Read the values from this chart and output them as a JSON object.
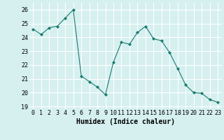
{
  "x": [
    0,
    1,
    2,
    3,
    4,
    5,
    6,
    7,
    8,
    9,
    10,
    11,
    12,
    13,
    14,
    15,
    16,
    17,
    18,
    19,
    20,
    21,
    22,
    23
  ],
  "y": [
    24.6,
    24.2,
    24.7,
    24.8,
    25.4,
    26.0,
    21.2,
    20.8,
    20.4,
    19.85,
    22.2,
    23.65,
    23.5,
    24.35,
    24.8,
    23.9,
    23.75,
    22.9,
    21.75,
    20.55,
    20.0,
    19.95,
    19.5,
    19.3
  ],
  "line_color": "#1a7a6e",
  "marker": "D",
  "marker_size": 2,
  "bg_color": "#d6f0f0",
  "grid_color": "#ffffff",
  "xlabel": "Humidex (Indice chaleur)",
  "xlabel_fontsize": 7,
  "tick_fontsize": 6,
  "xlim": [
    -0.5,
    23.5
  ],
  "ylim": [
    18.8,
    26.5
  ],
  "yticks": [
    19,
    20,
    21,
    22,
    23,
    24,
    25,
    26
  ],
  "xticks": [
    0,
    1,
    2,
    3,
    4,
    5,
    6,
    7,
    8,
    9,
    10,
    11,
    12,
    13,
    14,
    15,
    16,
    17,
    18,
    19,
    20,
    21,
    22,
    23
  ]
}
